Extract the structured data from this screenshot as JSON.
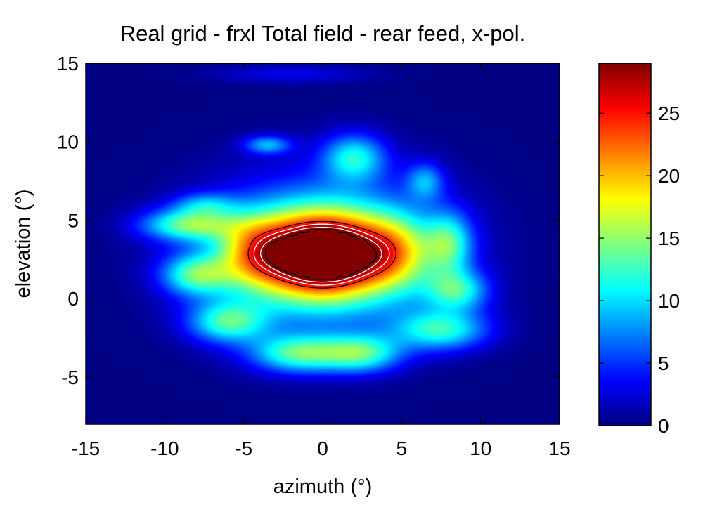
{
  "chart_data": {
    "type": "heatmap",
    "title": "Real grid - frxl Total field - rear feed, x-pol.",
    "xlabel": "azimuth (°)",
    "ylabel": "elevation (°)",
    "xlim": [
      -15,
      15
    ],
    "ylim": [
      -8,
      15
    ],
    "x_ticks": [
      "-15",
      "-10",
      "-5",
      "0",
      "5",
      "10",
      "15"
    ],
    "y_ticks": [
      "-5",
      "0",
      "5",
      "10",
      "15"
    ],
    "colorbar": {
      "colormap": "jet",
      "range": [
        0,
        29
      ],
      "ticks": [
        "0",
        "5",
        "10",
        "15",
        "20",
        "25"
      ]
    },
    "peak": {
      "value": 29,
      "x": 0.5,
      "y": 1.5
    },
    "components": [
      {
        "x": 0.0,
        "y": 2.8,
        "sx": 4.2,
        "sy": 2.6,
        "amp": 29
      },
      {
        "x": -4.5,
        "y": 3.0,
        "sx": 2.2,
        "sy": 2.2,
        "amp": 8
      },
      {
        "x": 4.8,
        "y": 3.0,
        "sx": 2.2,
        "sy": 2.4,
        "amp": 8
      },
      {
        "x": 0.0,
        "y": 2.8,
        "sx": 7.5,
        "sy": 4.8,
        "amp": 11
      },
      {
        "x": -8.5,
        "y": 4.7,
        "sx": 3.0,
        "sy": 1.0,
        "amp": 12
      },
      {
        "x": -8.0,
        "y": 1.5,
        "sx": 2.2,
        "sy": 1.3,
        "amp": 11
      },
      {
        "x": -6.0,
        "y": -1.5,
        "sx": 2.5,
        "sy": 1.3,
        "amp": 11
      },
      {
        "x": -1.5,
        "y": -3.5,
        "sx": 3.0,
        "sy": 1.2,
        "amp": 12
      },
      {
        "x": 2.5,
        "y": -3.5,
        "sx": 2.5,
        "sy": 1.2,
        "amp": 11
      },
      {
        "x": 7.5,
        "y": -2.0,
        "sx": 3.0,
        "sy": 1.3,
        "amp": 11
      },
      {
        "x": 8.5,
        "y": 0.5,
        "sx": 2.0,
        "sy": 1.3,
        "amp": 10
      },
      {
        "x": 8.0,
        "y": 3.5,
        "sx": 1.5,
        "sy": 2.0,
        "amp": 10
      },
      {
        "x": 2.0,
        "y": 9.0,
        "sx": 2.0,
        "sy": 1.5,
        "amp": 10
      },
      {
        "x": -3.5,
        "y": 9.8,
        "sx": 1.5,
        "sy": 0.6,
        "amp": 8
      },
      {
        "x": 6.5,
        "y": 7.5,
        "sx": 1.2,
        "sy": 1.2,
        "amp": 7
      },
      {
        "x": -7.5,
        "y": 6.0,
        "sx": 2.0,
        "sy": 0.8,
        "amp": 6
      },
      {
        "x": -2.0,
        "y": 14.3,
        "sx": 5.0,
        "sy": 0.6,
        "amp": 3
      }
    ],
    "contours_white": [
      26,
      28
    ],
    "contours_black": [
      24,
      29
    ]
  }
}
